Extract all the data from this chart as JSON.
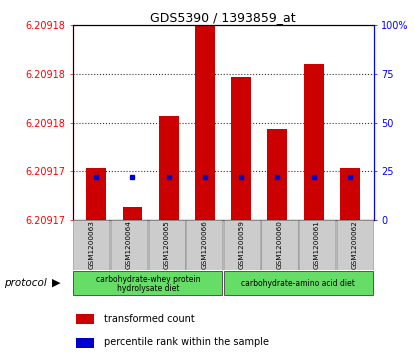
{
  "title": "GDS5390 / 1393859_at",
  "samples": [
    "GSM1200063",
    "GSM1200064",
    "GSM1200065",
    "GSM1200066",
    "GSM1200059",
    "GSM1200060",
    "GSM1200061",
    "GSM1200062"
  ],
  "transformed_count": [
    6.209172,
    6.209169,
    6.209176,
    6.209183,
    6.209179,
    6.209175,
    6.20918,
    6.209172
  ],
  "percentile_rank": [
    22,
    22,
    22,
    22,
    22,
    22,
    22,
    22
  ],
  "bar_color": "#cc0000",
  "dot_color": "#0000cc",
  "y_min": 6.209168,
  "y_max": 6.209183,
  "right_yticks": [
    0,
    25,
    50,
    75,
    100
  ],
  "right_yticklabels": [
    "0",
    "25",
    "50",
    "75",
    "100%"
  ],
  "group1_label_line1": "carbohydrate-whey protein",
  "group1_label_line2": "hydrolysate diet",
  "group2_label": "carbohydrate-amino acid diet",
  "protocol_label": "protocol",
  "legend_bar_label": "transformed count",
  "legend_dot_label": "percentile rank within the sample",
  "protocol_bg": "#66dd66",
  "sample_bg": "#cccccc",
  "plot_bg": "#ffffff"
}
